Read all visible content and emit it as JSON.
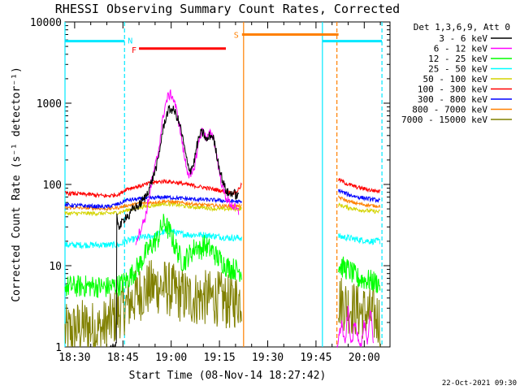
{
  "chart_data": {
    "type": "line",
    "title": "RHESSI Observing Summary Count Rates, Corrected",
    "xlabel": "Start Time (08-Nov-14 18:27:42)",
    "ylabel": "Corrected Count Rate (s⁻¹ detector⁻¹)",
    "yscale": "log",
    "ylim": [
      1,
      10000
    ],
    "xlim_minutes": [
      -3.0,
      98.0
    ],
    "x_tick_labels": [
      "18:30",
      "18:45",
      "19:00",
      "19:15",
      "19:30",
      "19:45",
      "20:00"
    ],
    "x_tick_minutes": [
      0,
      15,
      30,
      45,
      60,
      75,
      90
    ],
    "y_tick_labels": [
      "1",
      "10",
      "100",
      "1000",
      "10000"
    ],
    "y_tick_values": [
      1,
      10,
      100,
      1000,
      10000
    ],
    "legend": {
      "header": "Det 1,3,6,9, Att 0",
      "placement": "right"
    },
    "footer_stamp": "22-Oct-2021 09:30",
    "flags": [
      {
        "label": "N",
        "color": "#00e8ff",
        "bars": [
          [
            -3,
            15.5
          ],
          [
            77,
            95.5
          ]
        ],
        "level": 5800
      },
      {
        "label": "F",
        "color": "#ff0000",
        "bars": [
          [
            20,
            47
          ]
        ],
        "level": 4700
      },
      {
        "label": "S",
        "color": "#ff8000",
        "bars": [
          [
            52,
            82
          ]
        ],
        "level": 7000
      }
    ],
    "vlines": [
      {
        "x": -3,
        "color": "#00e8ff",
        "style": "solid"
      },
      {
        "x": 15.5,
        "color": "#00e8ff",
        "style": "dashed"
      },
      {
        "x": 52.5,
        "color": "#ff8000",
        "style": "solid"
      },
      {
        "x": 77,
        "color": "#00e8ff",
        "style": "solid"
      },
      {
        "x": 81.5,
        "color": "#ff8000",
        "style": "dashed"
      },
      {
        "x": 95.5,
        "color": "#00e8ff",
        "style": "dashed"
      }
    ],
    "series": [
      {
        "name": "3 - 6 keV",
        "color": "#000000",
        "noise": 0.06,
        "segments": [
          [
            [
              11,
              1
            ],
            [
              13,
              1
            ],
            [
              13,
              40
            ],
            [
              14,
              30
            ],
            [
              15,
              35
            ],
            [
              16,
              42
            ],
            [
              17,
              40
            ],
            [
              18,
              50
            ],
            [
              20,
              55
            ],
            [
              22,
              70
            ],
            [
              24,
              110
            ],
            [
              26,
              200
            ],
            [
              27,
              380
            ],
            [
              28,
              600
            ],
            [
              29,
              800
            ],
            [
              30,
              850
            ],
            [
              31,
              800
            ],
            [
              32,
              650
            ],
            [
              33,
              480
            ],
            [
              34,
              300
            ],
            [
              35,
              180
            ],
            [
              36,
              150
            ],
            [
              37,
              180
            ],
            [
              38,
              300
            ],
            [
              39,
              420
            ],
            [
              40,
              430
            ],
            [
              41,
              340
            ],
            [
              42,
              400
            ],
            [
              43,
              390
            ],
            [
              44,
              250
            ],
            [
              45,
              160
            ],
            [
              46,
              110
            ],
            [
              47,
              85
            ],
            [
              48,
              75
            ],
            [
              49,
              80
            ],
            [
              50,
              75
            ],
            [
              51,
              70
            ]
          ]
        ]
      },
      {
        "name": "6 - 12 keV",
        "color": "#ff00ff",
        "noise": 0.06,
        "segments": [
          [
            [
              19,
              20
            ],
            [
              20,
              25
            ],
            [
              22,
              40
            ],
            [
              24,
              110
            ],
            [
              26,
              250
            ],
            [
              27,
              500
            ],
            [
              28,
              900
            ],
            [
              29,
              1200
            ],
            [
              30,
              1300
            ],
            [
              31,
              1050
            ],
            [
              32,
              700
            ],
            [
              33,
              420
            ],
            [
              34,
              230
            ],
            [
              35,
              150
            ],
            [
              36,
              120
            ],
            [
              37,
              150
            ],
            [
              38,
              250
            ],
            [
              39,
              400
            ],
            [
              40,
              480
            ],
            [
              41,
              350
            ],
            [
              42,
              420
            ],
            [
              43,
              400
            ],
            [
              44,
              250
            ],
            [
              45,
              140
            ],
            [
              46,
              90
            ],
            [
              47,
              70
            ],
            [
              48,
              60
            ],
            [
              49,
              55
            ],
            [
              50,
              50
            ],
            [
              51,
              45
            ]
          ],
          [
            [
              81.5,
              1
            ],
            [
              83,
              2
            ],
            [
              84,
              1
            ],
            [
              85,
              3
            ],
            [
              86,
              1
            ],
            [
              87,
              2
            ],
            [
              89,
              1
            ],
            [
              90,
              2
            ],
            [
              91,
              1
            ],
            [
              92,
              3
            ],
            [
              93,
              1
            ]
          ]
        ]
      },
      {
        "name": "12 - 25 keV",
        "color": "#00ff00",
        "noise": 0.14,
        "segments": [
          [
            [
              -3,
              5.5
            ],
            [
              5,
              5.6
            ],
            [
              10,
              5.4
            ],
            [
              14,
              5.8
            ],
            [
              16,
              6.5
            ],
            [
              18,
              8
            ],
            [
              20,
              10
            ],
            [
              22,
              14
            ],
            [
              24,
              18
            ],
            [
              26,
              22
            ],
            [
              27,
              30
            ],
            [
              28,
              34
            ],
            [
              29,
              28
            ],
            [
              30,
              24
            ],
            [
              31,
              18
            ],
            [
              32,
              15
            ],
            [
              33,
              12
            ],
            [
              34,
              11
            ],
            [
              35,
              13
            ],
            [
              36,
              14
            ],
            [
              37,
              16
            ],
            [
              38,
              18
            ],
            [
              39,
              15
            ],
            [
              40,
              18
            ],
            [
              41,
              17
            ],
            [
              42,
              16
            ],
            [
              43,
              15
            ],
            [
              44,
              13
            ],
            [
              45,
              12
            ],
            [
              46,
              11
            ],
            [
              47,
              10
            ],
            [
              48,
              9.5
            ],
            [
              50,
              9
            ],
            [
              52,
              8.5
            ]
          ],
          [
            [
              82,
              10
            ],
            [
              85,
              9
            ],
            [
              88,
              7
            ],
            [
              92,
              6.5
            ],
            [
              95,
              6
            ]
          ]
        ]
      },
      {
        "name": "25 - 50 keV",
        "color": "#00ffff",
        "noise": 0.04,
        "segments": [
          [
            [
              -3,
              18
            ],
            [
              5,
              18
            ],
            [
              10,
              18
            ],
            [
              14,
              18
            ],
            [
              16,
              20
            ],
            [
              20,
              22
            ],
            [
              24,
              23
            ],
            [
              28,
              26
            ],
            [
              30,
              27
            ],
            [
              32,
              25
            ],
            [
              36,
              24
            ],
            [
              40,
              24
            ],
            [
              44,
              23
            ],
            [
              48,
              22
            ],
            [
              52,
              22
            ]
          ],
          [
            [
              82,
              23
            ],
            [
              85,
              22
            ],
            [
              88,
              21
            ],
            [
              92,
              20
            ],
            [
              95,
              20
            ]
          ]
        ]
      },
      {
        "name": "50 - 100 keV",
        "color": "#d4d400",
        "noise": 0.025,
        "segments": [
          [
            [
              -3,
              44
            ],
            [
              5,
              44
            ],
            [
              10,
              44
            ],
            [
              14,
              45
            ],
            [
              16,
              48
            ],
            [
              20,
              52
            ],
            [
              24,
              55
            ],
            [
              28,
              58
            ],
            [
              32,
              56
            ],
            [
              36,
              53
            ],
            [
              40,
              52
            ],
            [
              44,
              50
            ],
            [
              48,
              50
            ],
            [
              52,
              50
            ]
          ],
          [
            [
              82,
              56
            ],
            [
              85,
              52
            ],
            [
              88,
              49
            ],
            [
              92,
              47
            ],
            [
              95,
              46
            ]
          ]
        ]
      },
      {
        "name": "100 - 300 keV",
        "color": "#ff0000",
        "noise": 0.025,
        "segments": [
          [
            [
              -3,
              78
            ],
            [
              5,
              75
            ],
            [
              10,
              72
            ],
            [
              14,
              76
            ],
            [
              16,
              88
            ],
            [
              20,
              95
            ],
            [
              24,
              105
            ],
            [
              28,
              110
            ],
            [
              32,
              105
            ],
            [
              36,
              98
            ],
            [
              40,
              92
            ],
            [
              44,
              86
            ],
            [
              48,
              80
            ],
            [
              50,
              78
            ],
            [
              52,
              100
            ]
          ],
          [
            [
              82,
              115
            ],
            [
              85,
              100
            ],
            [
              88,
              92
            ],
            [
              92,
              85
            ],
            [
              95,
              82
            ]
          ]
        ]
      },
      {
        "name": "300 - 800 keV",
        "color": "#0000ff",
        "noise": 0.025,
        "segments": [
          [
            [
              -3,
              56
            ],
            [
              5,
              54
            ],
            [
              10,
              53
            ],
            [
              14,
              58
            ],
            [
              16,
              64
            ],
            [
              20,
              66
            ],
            [
              24,
              68
            ],
            [
              28,
              70
            ],
            [
              32,
              68
            ],
            [
              36,
              66
            ],
            [
              40,
              65
            ],
            [
              44,
              64
            ],
            [
              48,
              62
            ],
            [
              50,
              62
            ],
            [
              52,
              60
            ]
          ],
          [
            [
              82,
              85
            ],
            [
              85,
              75
            ],
            [
              88,
              70
            ],
            [
              92,
              66
            ],
            [
              95,
              63
            ]
          ]
        ]
      },
      {
        "name": "800 - 7000 keV",
        "color": "#ff8000",
        "noise": 0.02,
        "segments": [
          [
            [
              -3,
              52
            ],
            [
              5,
              51
            ],
            [
              10,
              50
            ],
            [
              14,
              52
            ],
            [
              16,
              55
            ],
            [
              20,
              58
            ],
            [
              24,
              60
            ],
            [
              28,
              62
            ],
            [
              32,
              60
            ],
            [
              36,
              58
            ],
            [
              40,
              56
            ],
            [
              44,
              55
            ],
            [
              48,
              54
            ],
            [
              52,
              54
            ]
          ],
          [
            [
              82,
              70
            ],
            [
              85,
              62
            ],
            [
              88,
              58
            ],
            [
              92,
              55
            ],
            [
              95,
              54
            ]
          ]
        ]
      },
      {
        "name": "7000 - 15000 keV",
        "color": "#808000",
        "noise": 0.35,
        "segments": [
          [
            [
              -3,
              1.5
            ],
            [
              3,
              1.8
            ],
            [
              8,
              1.6
            ],
            [
              12,
              2.2
            ],
            [
              14,
              2.8
            ],
            [
              16,
              3.2
            ],
            [
              20,
              4.5
            ],
            [
              24,
              5.5
            ],
            [
              28,
              5.5
            ],
            [
              32,
              4.5
            ],
            [
              36,
              4
            ],
            [
              40,
              4
            ],
            [
              44,
              4
            ],
            [
              48,
              3.5
            ],
            [
              52,
              4
            ]
          ],
          [
            [
              82,
              3.8
            ],
            [
              85,
              3.2
            ],
            [
              88,
              2.8
            ],
            [
              92,
              2.5
            ],
            [
              95,
              2.2
            ]
          ]
        ]
      }
    ]
  }
}
